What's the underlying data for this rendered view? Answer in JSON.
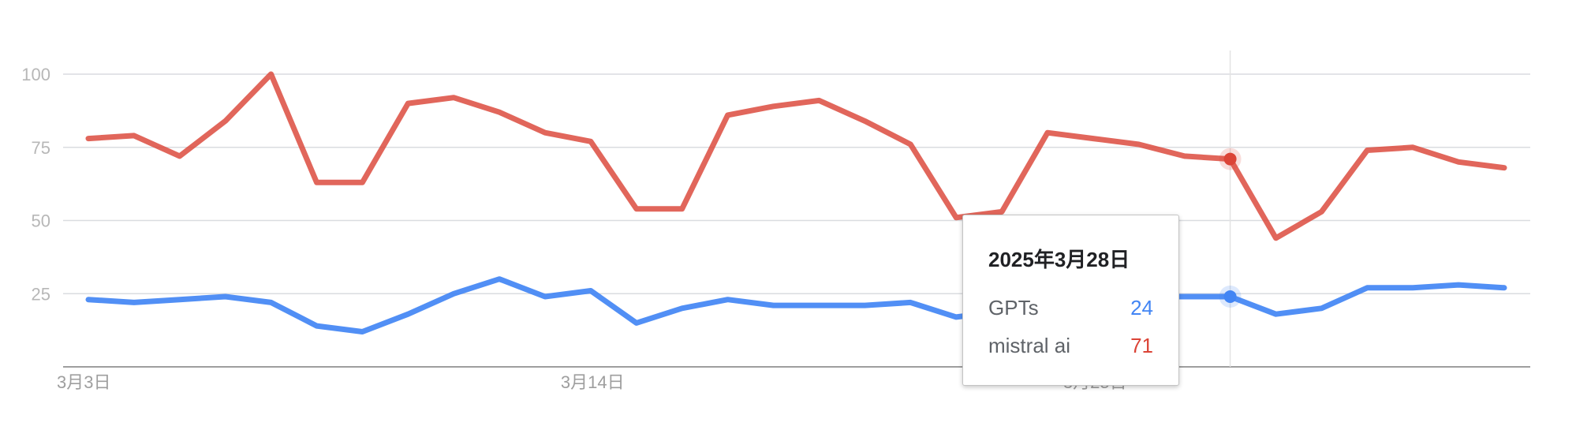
{
  "chart_data": {
    "type": "line",
    "x": [
      "3月3日",
      "3月4日",
      "3月5日",
      "3月6日",
      "3月7日",
      "3月8日",
      "3月9日",
      "3月10日",
      "3月11日",
      "3月12日",
      "3月13日",
      "3月14日",
      "3月15日",
      "3月16日",
      "3月17日",
      "3月18日",
      "3月19日",
      "3月20日",
      "3月21日",
      "3月22日",
      "3月23日",
      "3月24日",
      "3月25日",
      "3月26日",
      "3月27日",
      "3月28日",
      "3月29日",
      "3月30日",
      "3月31日",
      "4月1日",
      "4月2日",
      "4月3日"
    ],
    "x_tick_labels": [
      "3月3日",
      "3月14日",
      "3月25日"
    ],
    "series": [
      {
        "name": "GPTs",
        "color": "#4285f4",
        "values": [
          23,
          22,
          23,
          24,
          22,
          14,
          12,
          18,
          25,
          30,
          24,
          26,
          15,
          20,
          23,
          21,
          21,
          21,
          22,
          17,
          19,
          24,
          24,
          24,
          24,
          24,
          18,
          20,
          27,
          27,
          28,
          27
        ]
      },
      {
        "name": "mistral ai",
        "color": "#db4437",
        "values": [
          78,
          79,
          72,
          84,
          100,
          63,
          63,
          90,
          92,
          87,
          80,
          77,
          54,
          54,
          86,
          89,
          91,
          84,
          76,
          51,
          53,
          80,
          78,
          76,
          72,
          71,
          44,
          53,
          74,
          75,
          70,
          68
        ]
      }
    ],
    "ylim": [
      0,
      100
    ],
    "y_ticks": [
      25,
      50,
      75,
      100
    ],
    "grid": true,
    "hover_index": 25
  },
  "tooltip": {
    "date": "2025年3月28日",
    "rows": [
      {
        "label": "GPTs",
        "value": "24",
        "color": "#4285f4"
      },
      {
        "label": "mistral ai",
        "value": "71",
        "color": "#db4437"
      }
    ]
  }
}
